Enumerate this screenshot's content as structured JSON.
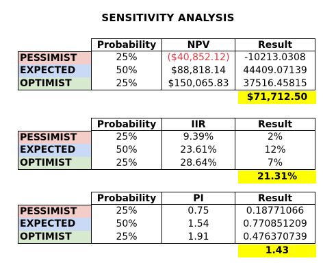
{
  "title": "SENSITIVITY ANALYSIS",
  "colors": {
    "pessimist": "#f4ccc8",
    "expected": "#c9daf7",
    "optimist": "#d7e9cf",
    "highlight": "#ffff00",
    "negative": "#e8393f"
  },
  "tables": [
    {
      "headers": [
        "Probability",
        "NPV",
        "Result"
      ],
      "rows": [
        {
          "label": "PESSIMIST",
          "probability": "25%",
          "value": "($40,852.12)",
          "result": "-10213.0308"
        },
        {
          "label": "EXPECTED",
          "probability": "50%",
          "value": "$88,818.14",
          "result": "44409.07139"
        },
        {
          "label": "OPTIMIST",
          "probability": "25%",
          "value": "$150,065.83",
          "result": "37516.45815"
        }
      ],
      "total": "$71,712.50"
    },
    {
      "headers": [
        "Probability",
        "IIR",
        "Result"
      ],
      "rows": [
        {
          "label": "PESSIMIST",
          "probability": "25%",
          "value": "9.39%",
          "result": "2%"
        },
        {
          "label": "EXPECTED",
          "probability": "50%",
          "value": "23.61%",
          "result": "12%"
        },
        {
          "label": "OPTIMIST",
          "probability": "25%",
          "value": "28.64%",
          "result": "7%"
        }
      ],
      "total": "21.31%"
    },
    {
      "headers": [
        "Probability",
        "PI",
        "Result"
      ],
      "rows": [
        {
          "label": "PESSIMIST",
          "probability": "25%",
          "value": "0.75",
          "result": "0.18771066"
        },
        {
          "label": "EXPECTED",
          "probability": "50%",
          "value": "1.54",
          "result": "0.770851209"
        },
        {
          "label": "OPTIMIST",
          "probability": "25%",
          "value": "1.91",
          "result": "0.476370739"
        }
      ],
      "total": "1.43"
    }
  ]
}
